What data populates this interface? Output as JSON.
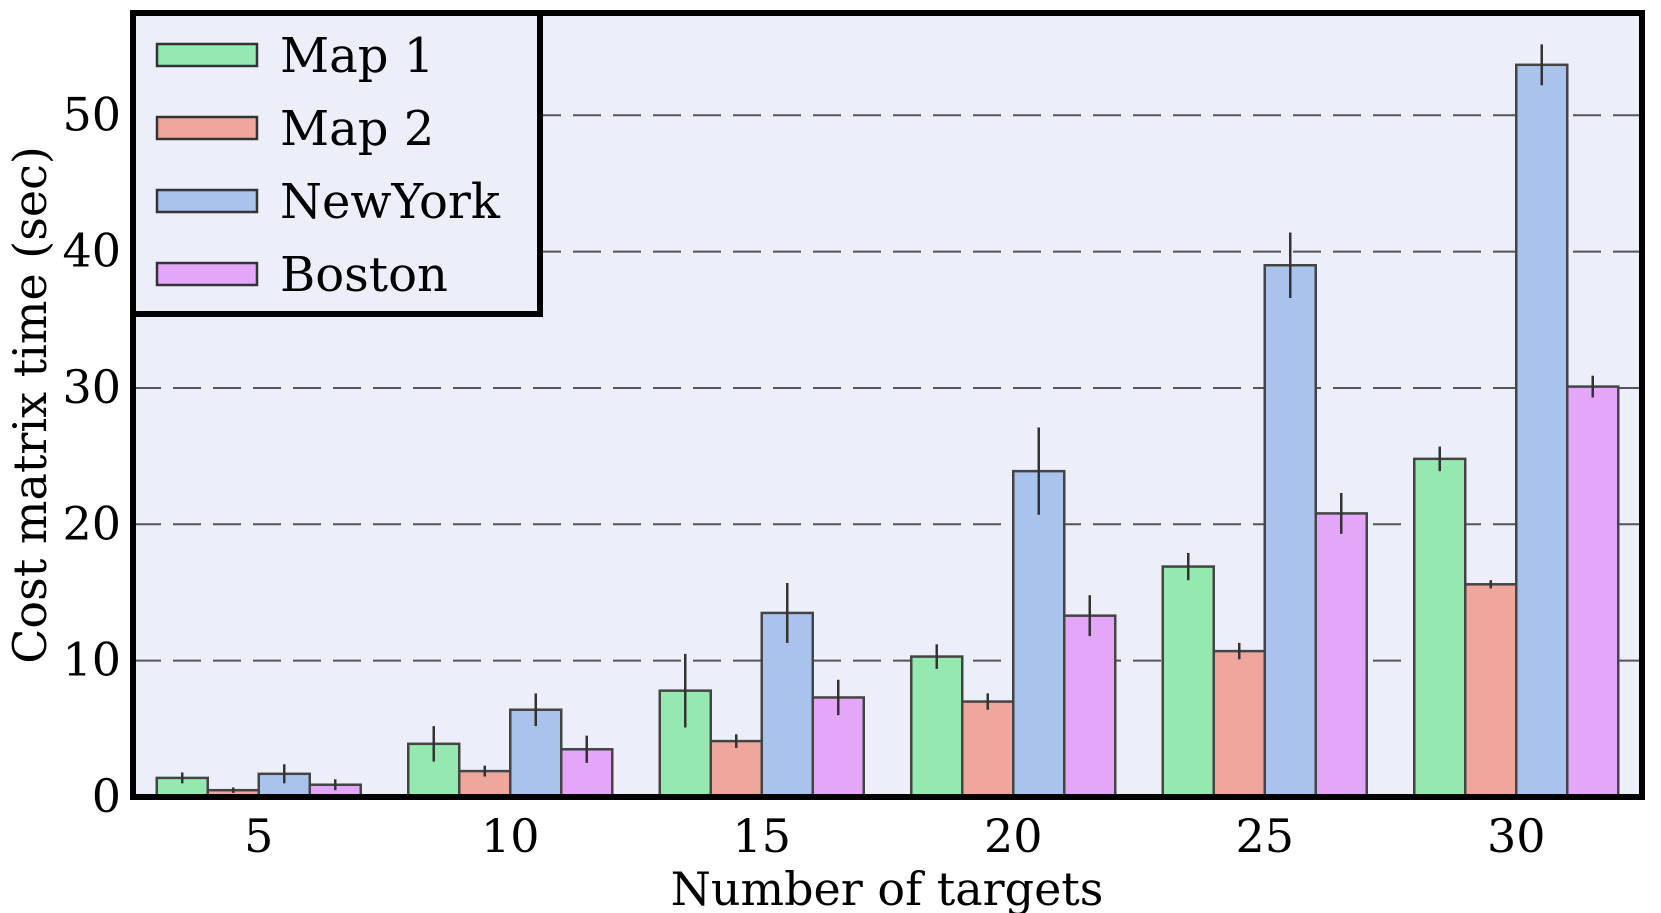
{
  "chart_data": {
    "type": "bar",
    "xlabel": "Number of targets",
    "ylabel": "Cost matrix time (sec)",
    "categories": [
      "5",
      "10",
      "15",
      "20",
      "25",
      "30"
    ],
    "ylim": [
      0,
      57.5
    ],
    "yticks": [
      0,
      10,
      20,
      30,
      40,
      50
    ],
    "grid": "horizontal dashed",
    "legend_position": "top-left",
    "series": [
      {
        "name": "Map 1",
        "color": "#95e8b0",
        "values": [
          1.4,
          3.9,
          7.8,
          10.3,
          16.9,
          24.8
        ],
        "errors": [
          0.4,
          1.3,
          2.7,
          0.9,
          1.0,
          0.9
        ]
      },
      {
        "name": "Map 2",
        "color": "#eea69d",
        "values": [
          0.5,
          1.9,
          4.1,
          7.0,
          10.7,
          15.6
        ],
        "errors": [
          0.2,
          0.4,
          0.5,
          0.6,
          0.6,
          0.3
        ]
      },
      {
        "name": "NewYork",
        "color": "#aac3ec",
        "values": [
          1.7,
          6.4,
          13.5,
          23.9,
          39.0,
          53.7
        ],
        "errors": [
          0.7,
          1.2,
          2.2,
          3.2,
          2.4,
          1.5
        ]
      },
      {
        "name": "Boston",
        "color": "#e4a6f8",
        "values": [
          0.9,
          3.5,
          7.3,
          13.3,
          20.8,
          30.1
        ],
        "errors": [
          0.4,
          1.0,
          1.3,
          1.5,
          1.5,
          0.8
        ]
      }
    ]
  }
}
